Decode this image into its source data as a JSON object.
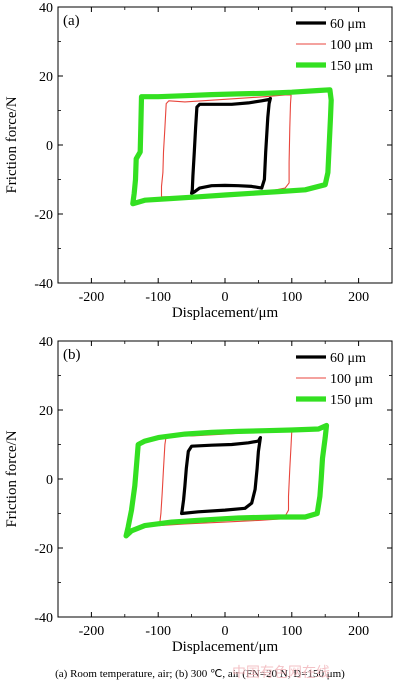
{
  "chart_data": [
    {
      "type": "line",
      "panel_label": "(a)",
      "xlabel": "Displacement/μm",
      "ylabel": "Friction force/N",
      "xlim": [
        -250,
        250
      ],
      "ylim": [
        -40,
        40
      ],
      "xticks": [
        "-200",
        "-100",
        "0",
        "100",
        "200"
      ],
      "yticks": [
        "40",
        "20",
        "0",
        "-20",
        "-40"
      ],
      "legend_position": "top-right",
      "series": [
        {
          "name": "60 μm",
          "color": "#000000",
          "stroke": "thick",
          "points": [
            [
              -50,
              -14
            ],
            [
              -46,
              -13.6
            ],
            [
              -38,
              -12.5
            ],
            [
              -20,
              -11.8
            ],
            [
              0,
              -11.7
            ],
            [
              20,
              -11.8
            ],
            [
              40,
              -12
            ],
            [
              55,
              -12.5
            ],
            [
              59,
              -10
            ],
            [
              61,
              -2
            ],
            [
              64,
              8
            ],
            [
              66,
              12
            ],
            [
              68,
              13.5
            ],
            [
              66,
              13.2
            ],
            [
              55,
              12.8
            ],
            [
              35,
              12.2
            ],
            [
              10,
              11.8
            ],
            [
              -20,
              11.8
            ],
            [
              -38,
              11.8
            ],
            [
              -42,
              11
            ],
            [
              -44,
              5
            ],
            [
              -46,
              -2
            ],
            [
              -48,
              -9
            ],
            [
              -49,
              -13
            ],
            [
              -50,
              -14
            ]
          ]
        },
        {
          "name": "100 μm",
          "color": "#e8453c",
          "stroke": "thin",
          "points": [
            [
              -95,
              -15
            ],
            [
              -60,
              -15
            ],
            [
              0,
              -14.5
            ],
            [
              50,
              -14
            ],
            [
              90,
              -12.5
            ],
            [
              96,
              -11
            ],
            [
              96,
              -5
            ],
            [
              97,
              5
            ],
            [
              98,
              12
            ],
            [
              99,
              14.5
            ],
            [
              90,
              14.5
            ],
            [
              60,
              14
            ],
            [
              20,
              13.5
            ],
            [
              -20,
              13
            ],
            [
              -60,
              12.5
            ],
            [
              -84,
              12.8
            ],
            [
              -88,
              12
            ],
            [
              -90,
              5
            ],
            [
              -92,
              -2
            ],
            [
              -93,
              -8
            ],
            [
              -95,
              -12
            ],
            [
              -95,
              -15
            ]
          ]
        },
        {
          "name": "150 μm",
          "color": "#33e021",
          "stroke": "very-thick",
          "points": [
            [
              -138,
              -17
            ],
            [
              -120,
              -16
            ],
            [
              -80,
              -15.5
            ],
            [
              -40,
              -15
            ],
            [
              0,
              -14.5
            ],
            [
              40,
              -14
            ],
            [
              80,
              -13.5
            ],
            [
              120,
              -13
            ],
            [
              150,
              -11.5
            ],
            [
              154,
              -8
            ],
            [
              156,
              0
            ],
            [
              158,
              8
            ],
            [
              159,
              13
            ],
            [
              157,
              16
            ],
            [
              140,
              15.8
            ],
            [
              100,
              15.3
            ],
            [
              60,
              15
            ],
            [
              20,
              14.8
            ],
            [
              -20,
              14.6
            ],
            [
              -60,
              14.3
            ],
            [
              -100,
              14
            ],
            [
              -125,
              14
            ],
            [
              -126,
              5
            ],
            [
              -127,
              -2
            ],
            [
              -133,
              -4
            ],
            [
              -134,
              -10
            ],
            [
              -136,
              -14
            ],
            [
              -138,
              -17
            ]
          ]
        }
      ]
    },
    {
      "type": "line",
      "panel_label": "(b)",
      "xlabel": "Displacement/μm",
      "ylabel": "Friction force/N",
      "xlim": [
        -250,
        250
      ],
      "ylim": [
        -40,
        40
      ],
      "xticks": [
        "-200",
        "-100",
        "0",
        "100",
        "200"
      ],
      "yticks": [
        "40",
        "20",
        "0",
        "-20",
        "-40"
      ],
      "legend_position": "top-right",
      "series": [
        {
          "name": "60 μm",
          "color": "#000000",
          "stroke": "thick",
          "points": [
            [
              -65,
              -10
            ],
            [
              -40,
              -9.5
            ],
            [
              0,
              -9
            ],
            [
              30,
              -8.5
            ],
            [
              40,
              -7
            ],
            [
              45,
              -3
            ],
            [
              48,
              3
            ],
            [
              50,
              8
            ],
            [
              53,
              12
            ],
            [
              50,
              11
            ],
            [
              35,
              10.5
            ],
            [
              10,
              10
            ],
            [
              -20,
              9.8
            ],
            [
              -50,
              9.5
            ],
            [
              -55,
              8
            ],
            [
              -58,
              3
            ],
            [
              -60,
              -2
            ],
            [
              -62,
              -6
            ],
            [
              -64,
              -9
            ],
            [
              -65,
              -10
            ]
          ]
        },
        {
          "name": "100 μm",
          "color": "#e8453c",
          "stroke": "thin",
          "points": [
            [
              -98,
              -13.5
            ],
            [
              -60,
              -13
            ],
            [
              0,
              -12.5
            ],
            [
              50,
              -12
            ],
            [
              88,
              -11.5
            ],
            [
              95,
              -9
            ],
            [
              95,
              -5
            ],
            [
              97,
              3
            ],
            [
              99,
              10
            ],
            [
              100,
              14
            ],
            [
              80,
              14
            ],
            [
              40,
              13.5
            ],
            [
              0,
              13
            ],
            [
              -50,
              12.5
            ],
            [
              -88,
              12.5
            ],
            [
              -90,
              10
            ],
            [
              -92,
              3
            ],
            [
              -94,
              -4
            ],
            [
              -96,
              -10
            ],
            [
              -98,
              -13.5
            ]
          ]
        },
        {
          "name": "150 μm",
          "color": "#33e021",
          "stroke": "very-thick",
          "points": [
            [
              -148,
              -16.5
            ],
            [
              -140,
              -15
            ],
            [
              -120,
              -13.5
            ],
            [
              -80,
              -12.5
            ],
            [
              -40,
              -12
            ],
            [
              0,
              -11.5
            ],
            [
              20,
              -11.3
            ],
            [
              40,
              -11.2
            ],
            [
              80,
              -11
            ],
            [
              120,
              -11
            ],
            [
              138,
              -10
            ],
            [
              142,
              -5
            ],
            [
              144,
              0
            ],
            [
              146,
              6
            ],
            [
              150,
              12
            ],
            [
              152,
              15.5
            ],
            [
              140,
              14.5
            ],
            [
              100,
              14.2
            ],
            [
              60,
              14
            ],
            [
              20,
              13.8
            ],
            [
              -20,
              13.5
            ],
            [
              -60,
              13
            ],
            [
              -100,
              12
            ],
            [
              -120,
              11
            ],
            [
              -130,
              10
            ],
            [
              -132,
              5
            ],
            [
              -135,
              -2
            ],
            [
              -140,
              -9
            ],
            [
              -145,
              -14
            ],
            [
              -148,
              -16.5
            ]
          ]
        }
      ]
    }
  ],
  "caption": "(a) Room temperature, air; (b) 300 ℃, air (FN=20 N, D=150 μm)",
  "watermark": "中国有色网在线"
}
